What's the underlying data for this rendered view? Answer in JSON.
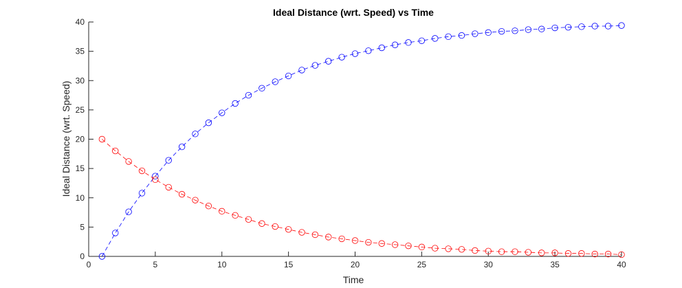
{
  "chart_data": {
    "type": "line",
    "title": "Ideal Distance (wrt. Speed) vs Time",
    "xlabel": "Time",
    "ylabel": "Ideal Distance (wrt. Speed)",
    "xlim": [
      0,
      40
    ],
    "ylim": [
      0,
      40
    ],
    "xticks": [
      "0",
      "5",
      "10",
      "15",
      "20",
      "25",
      "30",
      "35",
      "40"
    ],
    "yticks": [
      "0",
      "5",
      "10",
      "15",
      "20",
      "25",
      "30",
      "35",
      "40"
    ],
    "grid": false,
    "legend": "none",
    "x": [
      1,
      2,
      3,
      4,
      5,
      6,
      7,
      8,
      9,
      10,
      11,
      12,
      13,
      14,
      15,
      16,
      17,
      18,
      19,
      20,
      21,
      22,
      23,
      24,
      25,
      26,
      27,
      28,
      29,
      30,
      31,
      32,
      33,
      34,
      35,
      36,
      37,
      38,
      39,
      40
    ],
    "series": [
      {
        "color": "#0000ff",
        "line_style": "dashed",
        "marker": "circle",
        "values": [
          0.0,
          4.0,
          7.6,
          10.8,
          13.7,
          16.4,
          18.7,
          20.9,
          22.8,
          24.5,
          26.1,
          27.5,
          28.7,
          29.8,
          30.8,
          31.8,
          32.6,
          33.3,
          34.0,
          34.6,
          35.1,
          35.6,
          36.1,
          36.5,
          36.8,
          37.2,
          37.5,
          37.7,
          38.0,
          38.2,
          38.4,
          38.5,
          38.7,
          38.8,
          39.0,
          39.1,
          39.2,
          39.3,
          39.3,
          39.4
        ]
      },
      {
        "color": "#ff0000",
        "line_style": "dashed",
        "marker": "circle",
        "values": [
          20.0,
          18.0,
          16.2,
          14.6,
          13.1,
          11.8,
          10.6,
          9.6,
          8.6,
          7.7,
          7.0,
          6.3,
          5.6,
          5.1,
          4.6,
          4.1,
          3.7,
          3.3,
          3.0,
          2.7,
          2.4,
          2.2,
          2.0,
          1.8,
          1.6,
          1.4,
          1.3,
          1.2,
          1.0,
          0.9,
          0.8,
          0.8,
          0.7,
          0.6,
          0.6,
          0.5,
          0.5,
          0.4,
          0.4,
          0.3
        ]
      }
    ]
  }
}
